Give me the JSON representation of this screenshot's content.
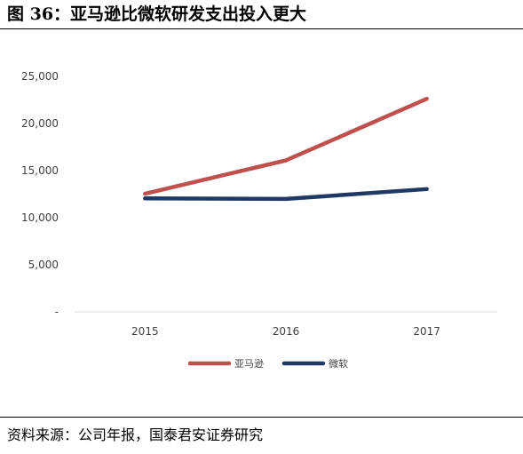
{
  "figure": {
    "title": "图 36：亚马逊比微软研发支出投入更大",
    "source": "资料来源：公司年报，国泰君安证券研究"
  },
  "chart_data": {
    "type": "line",
    "categories": [
      "2015",
      "2016",
      "2017"
    ],
    "series": [
      {
        "name": "亚马逊",
        "values": [
          12540,
          16085,
          22620
        ],
        "color": "#c0504d"
      },
      {
        "name": "微软",
        "values": [
          12046,
          11988,
          13037
        ],
        "color": "#1f3864"
      }
    ],
    "ylim": [
      0,
      25000
    ],
    "y_ticks": [
      0,
      5000,
      10000,
      15000,
      20000,
      25000
    ],
    "y_tick_labels": [
      "-",
      "5,000",
      "10,000",
      "15,000",
      "20,000",
      "25,000"
    ],
    "grid": false,
    "legend_position": "bottom-center"
  }
}
